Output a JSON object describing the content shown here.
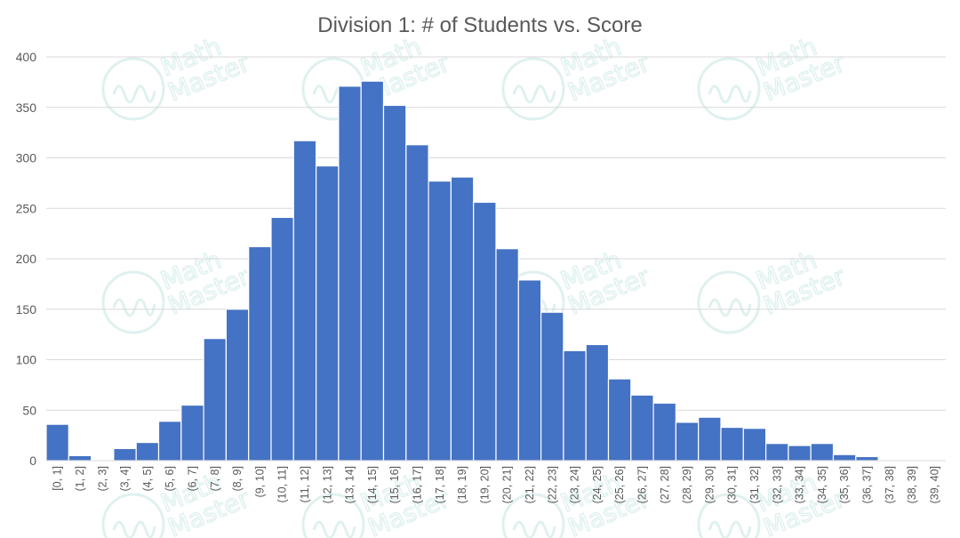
{
  "chart_data": {
    "type": "bar",
    "title": "Division 1: # of Students vs. Score",
    "xlabel": "",
    "ylabel": "",
    "ylim": [
      0,
      400
    ],
    "yticks": [
      0,
      50,
      100,
      150,
      200,
      250,
      300,
      350,
      400
    ],
    "categories": [
      "[0, 1]",
      "(1, 2]",
      "(2, 3]",
      "(3, 4]",
      "(4, 5]",
      "(5, 6]",
      "(6, 7]",
      "(7, 8]",
      "(8, 9]",
      "(9, 10]",
      "(10, 11]",
      "(11, 12]",
      "(12, 13]",
      "(13, 14]",
      "(14, 15]",
      "(15, 16]",
      "(16, 17]",
      "(17, 18]",
      "(18, 19]",
      "(19, 20]",
      "(20, 21]",
      "(21, 22]",
      "(22, 23]",
      "(23, 24]",
      "(24, 25]",
      "(25, 26]",
      "(26, 27]",
      "(27, 28]",
      "(28, 29]",
      "(29, 30]",
      "(30, 31]",
      "(31, 32]",
      "(32, 33]",
      "(33, 34]",
      "(34, 35]",
      "(35, 36]",
      "(36, 37]",
      "(37, 38]",
      "(38, 39]",
      "(39, 40]"
    ],
    "values": [
      36,
      5,
      0,
      12,
      18,
      39,
      55,
      121,
      150,
      212,
      241,
      317,
      292,
      371,
      376,
      352,
      313,
      277,
      281,
      256,
      210,
      179,
      147,
      109,
      115,
      81,
      65,
      57,
      38,
      43,
      33,
      32,
      17,
      15,
      17,
      6,
      4,
      0,
      0,
      0
    ],
    "grid": true,
    "bar_color": "#4472c4"
  },
  "watermark": {
    "text_line1": "Math",
    "text_line2": "Master",
    "color": "#dff1ef"
  }
}
